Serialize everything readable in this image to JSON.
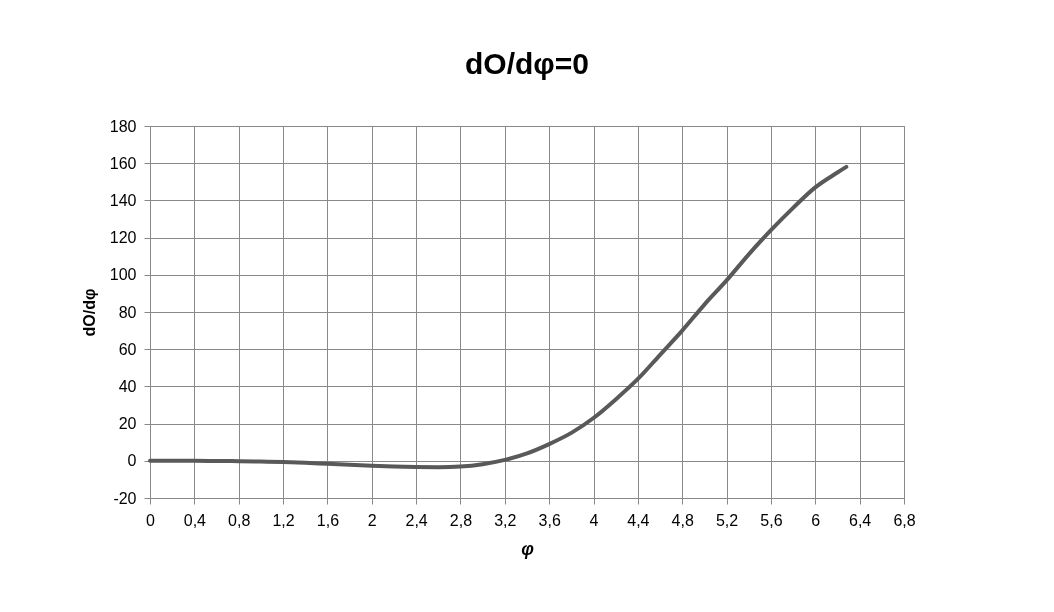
{
  "chart_data": {
    "type": "line",
    "title": "dO/dφ=0",
    "xlabel": "φ",
    "ylabel": "dO/dφ",
    "x": [
      0,
      0.2,
      0.4,
      0.6,
      0.8,
      1.0,
      1.2,
      1.4,
      1.6,
      1.8,
      2.0,
      2.2,
      2.4,
      2.6,
      2.8,
      3.0,
      3.2,
      3.4,
      3.6,
      3.8,
      4.0,
      4.2,
      4.4,
      4.6,
      4.8,
      5.0,
      5.2,
      5.4,
      5.6,
      5.8,
      6.0,
      6.2,
      6.28
    ],
    "series": [
      {
        "color": "#595959",
        "values": [
          0,
          0,
          0,
          -0.1,
          -0.2,
          -0.4,
          -0.7,
          -1.1,
          -1.6,
          -2.1,
          -2.6,
          -3.1,
          -3.4,
          -3.5,
          -3.1,
          -1.8,
          0.5,
          4,
          9,
          15,
          23,
          33,
          44,
          57,
          70,
          84,
          97,
          111,
          124,
          136,
          147,
          155,
          158
        ]
      }
    ],
    "xlim": [
      0,
      6.8
    ],
    "ylim": [
      -20,
      180
    ],
    "xticks": [
      0,
      {
        "value": 0.4,
        "label": "0,4"
      },
      {
        "value": 0.8,
        "label": "0,8"
      },
      {
        "value": 1.2,
        "label": "1,2"
      },
      {
        "value": 1.6,
        "label": "1,6"
      },
      2,
      {
        "value": 2.4,
        "label": "2,4"
      },
      {
        "value": 2.8,
        "label": "2,8"
      },
      {
        "value": 3.2,
        "label": "3,2"
      },
      {
        "value": 3.6,
        "label": "3,6"
      },
      4,
      {
        "value": 4.4,
        "label": "4,4"
      },
      {
        "value": 4.8,
        "label": "4,8"
      },
      {
        "value": 5.2,
        "label": "5,2"
      },
      {
        "value": 5.6,
        "label": "5,6"
      },
      6,
      {
        "value": 6.4,
        "label": "6,4"
      },
      {
        "value": 6.8,
        "label": "6,8"
      }
    ],
    "yticks": [
      -20,
      0,
      20,
      40,
      60,
      80,
      100,
      120,
      140,
      160,
      180
    ],
    "grid": true,
    "marker": "none",
    "line_style": "solid"
  }
}
